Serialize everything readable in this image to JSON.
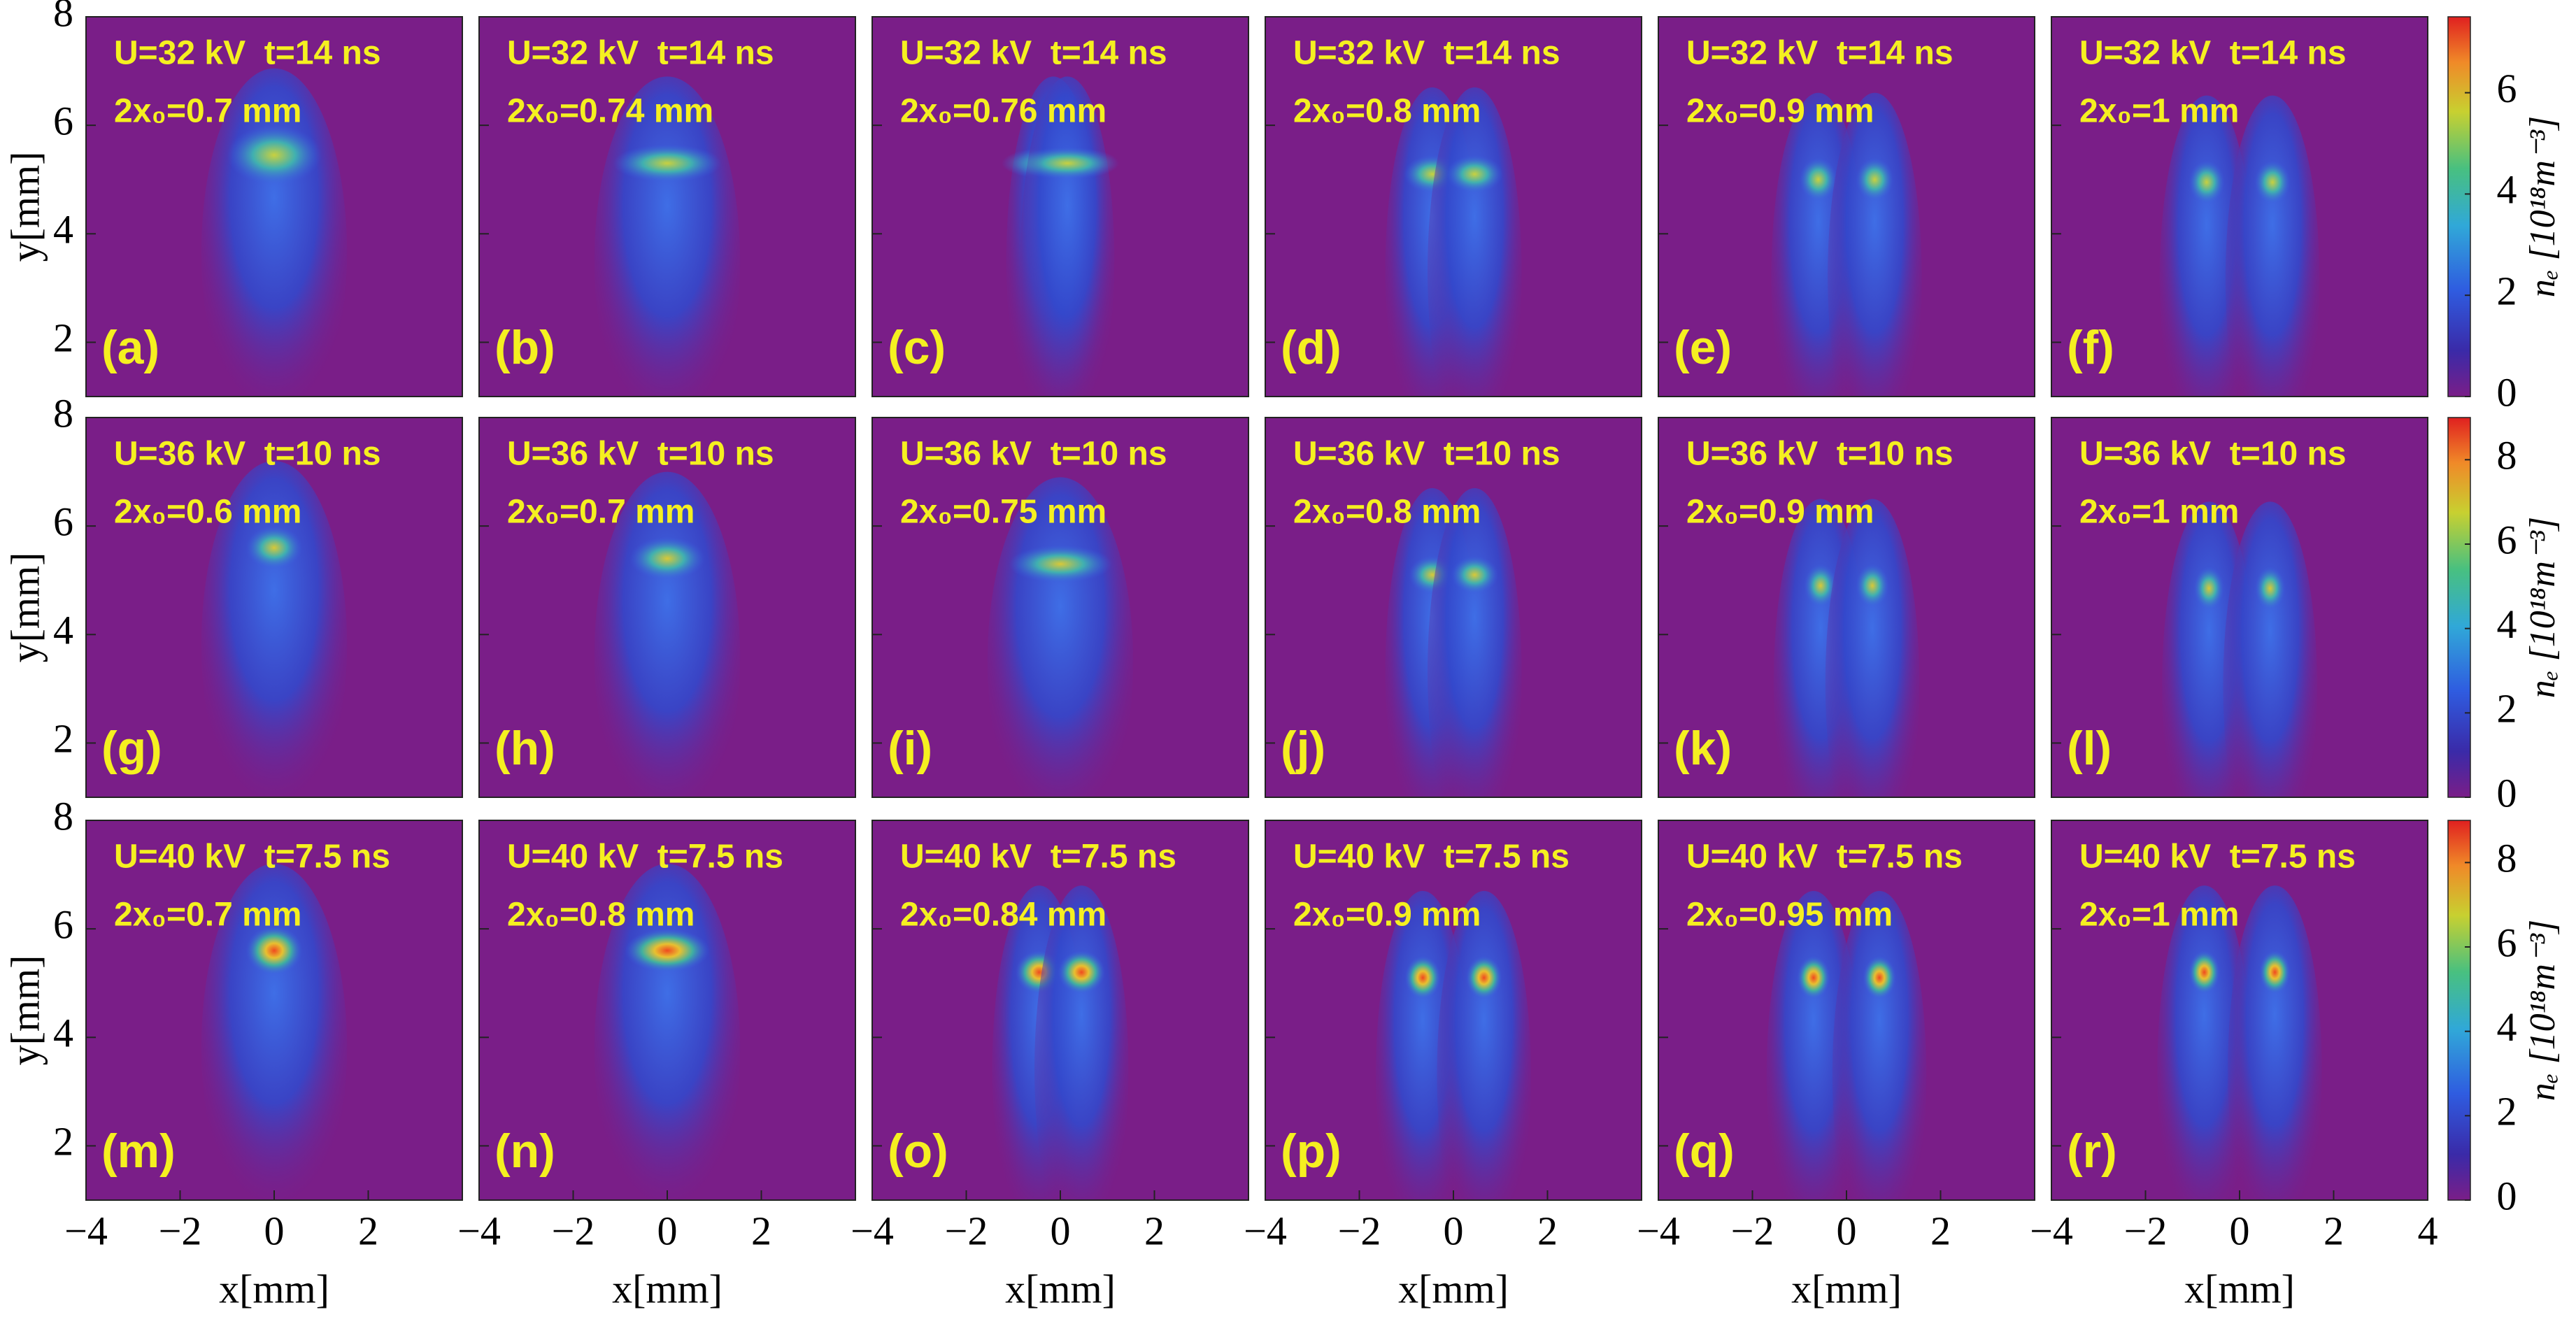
{
  "chart_data": [
    {
      "type": "heatmap",
      "title": "U=32 kV  t=14 ns",
      "panels": [
        {
          "label": "(a)",
          "annotation": "2x₀=0.7 mm"
        },
        {
          "label": "(b)",
          "annotation": "2x₀=0.74 mm"
        },
        {
          "label": "(c)",
          "annotation": "2x₀=0.76 mm"
        },
        {
          "label": "(d)",
          "annotation": "2x₀=0.8 mm"
        },
        {
          "label": "(e)",
          "annotation": "2x₀=0.9 mm"
        },
        {
          "label": "(f)",
          "annotation": "2x₀=1 mm"
        }
      ],
      "xlim": [
        -4,
        4
      ],
      "ylim": [
        1,
        8
      ],
      "yticks": [
        2,
        4,
        6,
        8
      ],
      "ylabel": "y[mm]",
      "colorbar": {
        "label": "nₑ [10¹⁸m⁻³]",
        "lim": [
          0,
          7.5
        ],
        "ticks": [
          0,
          2,
          4,
          6
        ]
      }
    },
    {
      "type": "heatmap",
      "title": "U=36 kV  t=10 ns",
      "panels": [
        {
          "label": "(g)",
          "annotation": "2x₀=0.6 mm"
        },
        {
          "label": "(h)",
          "annotation": "2x₀=0.7 mm"
        },
        {
          "label": "(i)",
          "annotation": "2x₀=0.75 mm"
        },
        {
          "label": "(j)",
          "annotation": "2x₀=0.8 mm"
        },
        {
          "label": "(k)",
          "annotation": "2x₀=0.9 mm"
        },
        {
          "label": "(l)",
          "annotation": "2x₀=1 mm"
        }
      ],
      "xlim": [
        -4,
        4
      ],
      "ylim": [
        1,
        8
      ],
      "yticks": [
        2,
        4,
        6,
        8
      ],
      "ylabel": "y[mm]",
      "colorbar": {
        "label": "nₑ [10¹⁸m⁻³]",
        "lim": [
          0,
          9
        ],
        "ticks": [
          0,
          2,
          4,
          6,
          8
        ]
      }
    },
    {
      "type": "heatmap",
      "title": "U=40 kV  t=7.5 ns",
      "panels": [
        {
          "label": "(m)",
          "annotation": "2x₀=0.7 mm"
        },
        {
          "label": "(n)",
          "annotation": "2x₀=0.8 mm"
        },
        {
          "label": "(o)",
          "annotation": "2x₀=0.84 mm"
        },
        {
          "label": "(p)",
          "annotation": "2x₀=0.9 mm"
        },
        {
          "label": "(q)",
          "annotation": "2x₀=0.95 mm"
        },
        {
          "label": "(r)",
          "annotation": "2x₀=1 mm"
        }
      ],
      "xlim": [
        -4,
        4
      ],
      "ylim": [
        1,
        8
      ],
      "yticks": [
        2,
        4,
        6,
        8
      ],
      "ylabel": "y[mm]",
      "xticks": [
        {
          "value": -4,
          "label": "−4"
        },
        {
          "value": -2,
          "label": "−2"
        },
        0,
        2,
        4
      ],
      "xlabel": "x[mm]",
      "colorbar": {
        "label": "nₑ [10¹⁸m⁻³]",
        "lim": [
          0,
          9
        ],
        "ticks": [
          0,
          2,
          4,
          6,
          8
        ]
      }
    }
  ]
}
